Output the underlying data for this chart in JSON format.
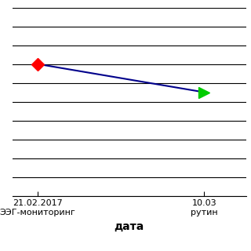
{
  "x_values": [
    0,
    1
  ],
  "y_values": [
    7,
    5.5
  ],
  "y_min": 0,
  "y_max": 10,
  "line_color": "#00008B",
  "line_width": 1.5,
  "marker1_color": "#FF0000",
  "marker1_style": "D",
  "marker1_size": 8,
  "marker2_color": "#00CC00",
  "marker2_style": ">",
  "marker2_size": 10,
  "x_tick_labels": [
    "21.02.2017\nЭЭГ-мониторинг",
    "10.03\nрутин"
  ],
  "xlabel": "дата",
  "background_color": "#FFFFFF",
  "grid_color": "#000000",
  "n_gridlines": 10,
  "xlim_left": -0.15,
  "xlim_right": 1.25
}
